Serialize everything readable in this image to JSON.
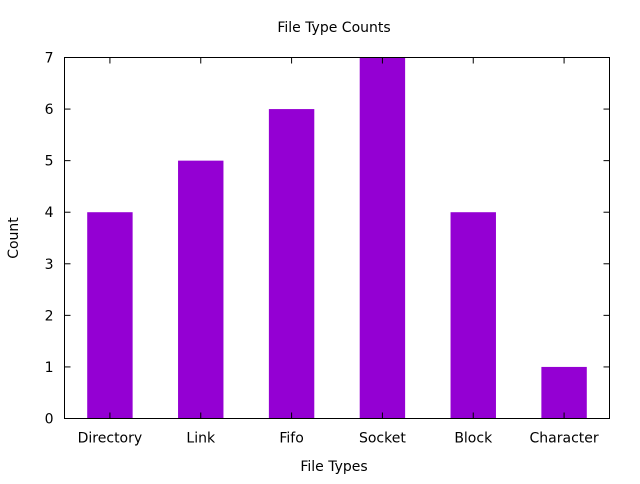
{
  "chart_data": {
    "type": "bar",
    "title": "File Type Counts",
    "xlabel": "File Types",
    "ylabel": "Count",
    "categories": [
      "Directory",
      "Link",
      "Fifo",
      "Socket",
      "Block",
      "Character"
    ],
    "values": [
      4,
      5,
      6,
      7,
      4,
      1
    ],
    "ylim": [
      0,
      7
    ],
    "yticks": [
      "0",
      "1",
      "2",
      "3",
      "4",
      "5",
      "6",
      "7"
    ],
    "bar_color": "#9400d3",
    "grid": false,
    "legend": "none"
  }
}
